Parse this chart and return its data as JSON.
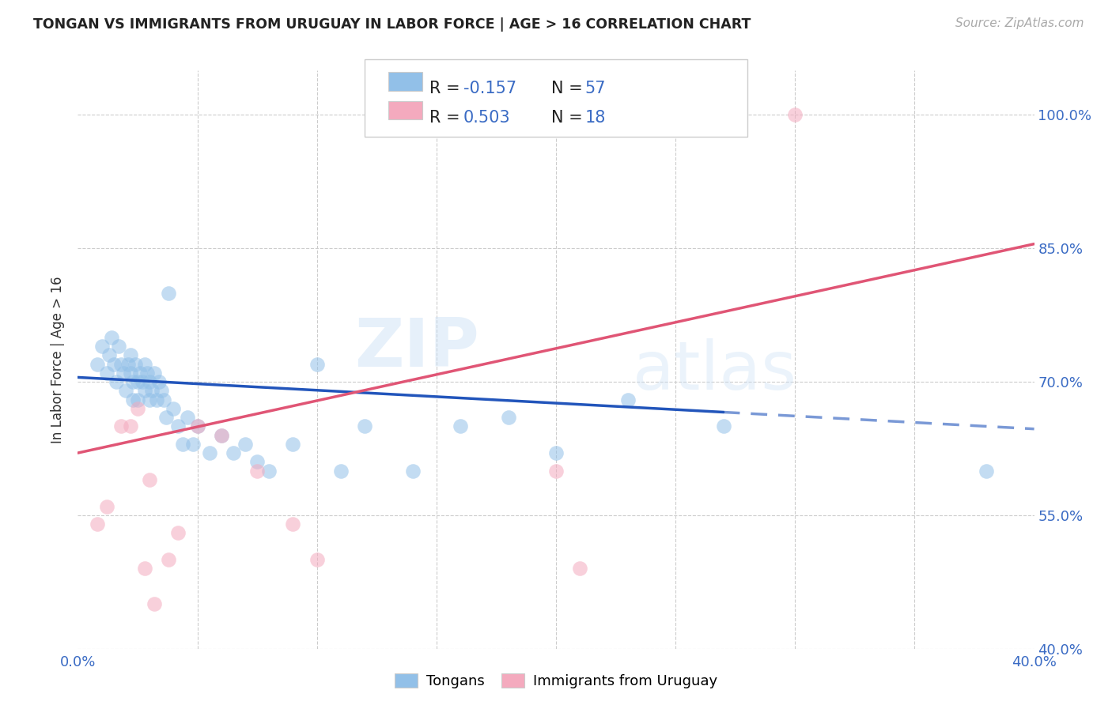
{
  "title": "TONGAN VS IMMIGRANTS FROM URUGUAY IN LABOR FORCE | AGE > 16 CORRELATION CHART",
  "source": "Source: ZipAtlas.com",
  "ylabel": "In Labor Force | Age > 16",
  "xlim": [
    0.0,
    0.4
  ],
  "ylim": [
    0.4,
    1.05
  ],
  "blue_R": -0.157,
  "blue_N": 57,
  "pink_R": 0.503,
  "pink_N": 18,
  "blue_color": "#92c0e8",
  "pink_color": "#f4aabe",
  "blue_line_color": "#2255bb",
  "pink_line_color": "#e05575",
  "watermark_zip": "ZIP",
  "watermark_atlas": "atlas",
  "grid_color": "#cccccc",
  "background_color": "#ffffff",
  "blue_scatter_x": [
    0.008,
    0.01,
    0.012,
    0.013,
    0.014,
    0.015,
    0.016,
    0.017,
    0.018,
    0.019,
    0.02,
    0.021,
    0.022,
    0.022,
    0.023,
    0.023,
    0.024,
    0.025,
    0.025,
    0.026,
    0.027,
    0.028,
    0.028,
    0.029,
    0.03,
    0.03,
    0.031,
    0.032,
    0.033,
    0.034,
    0.035,
    0.036,
    0.037,
    0.038,
    0.04,
    0.042,
    0.044,
    0.046,
    0.048,
    0.05,
    0.055,
    0.06,
    0.065,
    0.07,
    0.075,
    0.08,
    0.09,
    0.1,
    0.11,
    0.12,
    0.14,
    0.16,
    0.18,
    0.2,
    0.23,
    0.27,
    0.38
  ],
  "blue_scatter_y": [
    0.72,
    0.74,
    0.71,
    0.73,
    0.75,
    0.72,
    0.7,
    0.74,
    0.72,
    0.71,
    0.69,
    0.72,
    0.71,
    0.73,
    0.7,
    0.68,
    0.72,
    0.7,
    0.68,
    0.71,
    0.7,
    0.72,
    0.69,
    0.71,
    0.68,
    0.7,
    0.69,
    0.71,
    0.68,
    0.7,
    0.69,
    0.68,
    0.66,
    0.8,
    0.67,
    0.65,
    0.63,
    0.66,
    0.63,
    0.65,
    0.62,
    0.64,
    0.62,
    0.63,
    0.61,
    0.6,
    0.63,
    0.72,
    0.6,
    0.65,
    0.6,
    0.65,
    0.66,
    0.62,
    0.68,
    0.65,
    0.6
  ],
  "pink_scatter_x": [
    0.008,
    0.012,
    0.018,
    0.022,
    0.025,
    0.028,
    0.03,
    0.032,
    0.038,
    0.042,
    0.05,
    0.06,
    0.075,
    0.09,
    0.1,
    0.2,
    0.21,
    0.3
  ],
  "pink_scatter_y": [
    0.54,
    0.56,
    0.65,
    0.65,
    0.67,
    0.49,
    0.59,
    0.45,
    0.5,
    0.53,
    0.65,
    0.64,
    0.6,
    0.54,
    0.5,
    0.6,
    0.49,
    1.0
  ],
  "blue_trend_y0": 0.705,
  "blue_trend_y1": 0.647,
  "pink_trend_y0": 0.62,
  "pink_trend_y1": 0.855
}
